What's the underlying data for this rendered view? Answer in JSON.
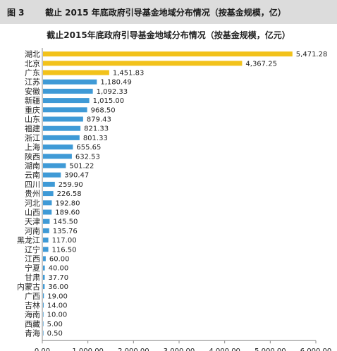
{
  "header": {
    "figure_label": "图 3",
    "title": "截止 2015 年底政府引导基金地域分布情况（按基金规模，亿）"
  },
  "chart_data": {
    "type": "bar",
    "orientation": "horizontal",
    "title": "截止2015年底政府引导基金地域分布情况（按基金规模，亿元）",
    "categories": [
      "湖北",
      "北京",
      "广东",
      "江苏",
      "安徽",
      "新疆",
      "重庆",
      "山东",
      "福建",
      "浙江",
      "上海",
      "陕西",
      "湖南",
      "云南",
      "四川",
      "贵州",
      "河北",
      "山西",
      "天津",
      "河南",
      "黑龙江",
      "辽宁",
      "江西",
      "宁夏",
      "甘肃",
      "内蒙古",
      "广西",
      "吉林",
      "海南",
      "西藏",
      "青海"
    ],
    "values": [
      5471.28,
      4367.25,
      1451.83,
      1180.49,
      1092.33,
      1015.0,
      968.5,
      879.43,
      821.33,
      801.33,
      655.65,
      632.53,
      501.22,
      390.47,
      259.9,
      226.58,
      192.8,
      189.6,
      145.5,
      135.76,
      117.0,
      116.5,
      60.0,
      40.0,
      37.7,
      36.0,
      19.0,
      14.0,
      10.0,
      5.0,
      0.5
    ],
    "value_labels": [
      "5,471.28",
      "4,367.25",
      "1,451.83",
      "1,180.49",
      "1,092.33",
      "1,015.00",
      "968.50",
      "879.43",
      "821.33",
      "801.33",
      "655.65",
      "632.53",
      "501.22",
      "390.47",
      "259.90",
      "226.58",
      "192.80",
      "189.60",
      "145.50",
      "135.76",
      "117.00",
      "116.50",
      "60.00",
      "40.00",
      "37.70",
      "36.00",
      "19.00",
      "14.00",
      "10.00",
      "5.00",
      "0.50"
    ],
    "xlim": [
      0,
      6000
    ],
    "xticks": [
      0,
      1000,
      2000,
      3000,
      4000,
      5000,
      6000
    ],
    "xtick_labels": [
      "0.00",
      "1,000.00",
      "2,000.00",
      "3,000.00",
      "4,000.00",
      "5,000.00",
      "6,000.00"
    ],
    "grid": false,
    "colors": {
      "top_bars": "#f2c21b",
      "other_bars": "#3f9ad6",
      "axis": "#888888",
      "header_bg": "#dcdcdc"
    }
  }
}
